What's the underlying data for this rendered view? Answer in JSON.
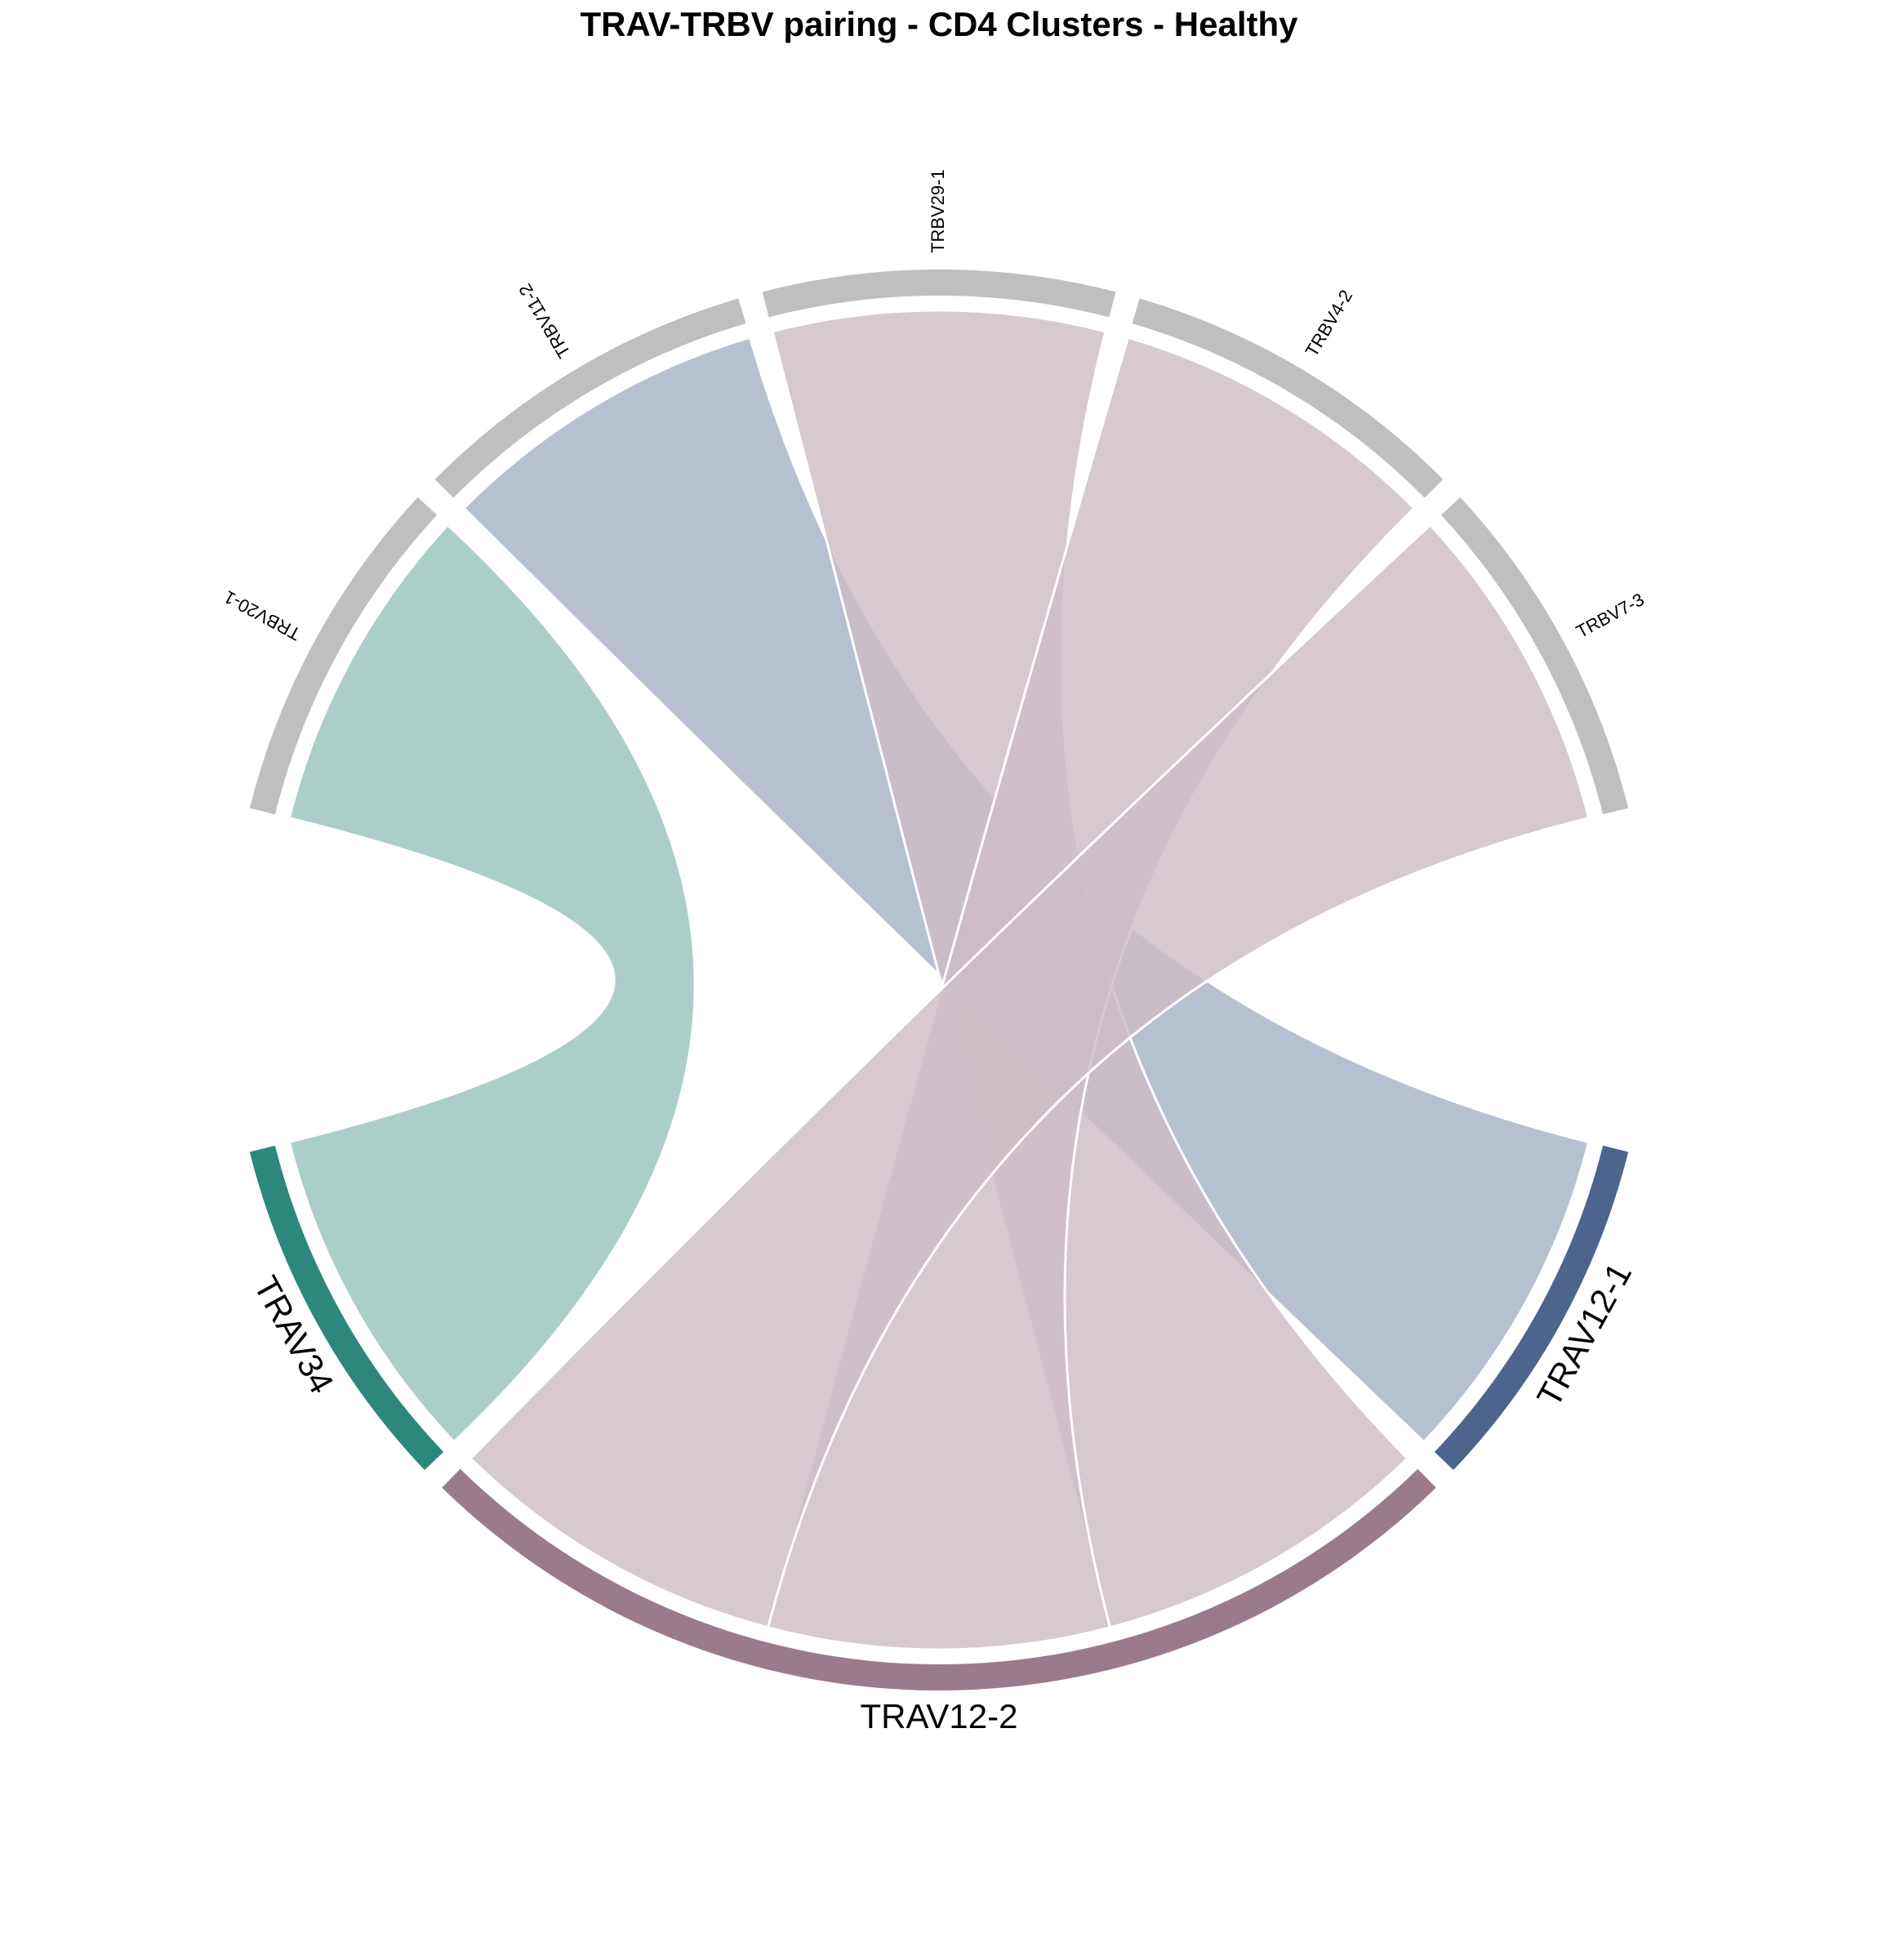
{
  "chart_data": {
    "type": "chord",
    "title": "TRAV-TRBV pairing - CD4 Clusters - Healthy",
    "sectors": {
      "trbv": [
        {
          "name": "TRBV20-1",
          "value": 1,
          "color": "#bfbfbf"
        },
        {
          "name": "TRBV11-2",
          "value": 1,
          "color": "#bfbfbf"
        },
        {
          "name": "TRBV29-1",
          "value": 1,
          "color": "#bfbfbf"
        },
        {
          "name": "TRBV4-2",
          "value": 1,
          "color": "#bfbfbf"
        },
        {
          "name": "TRBV7-3",
          "value": 1,
          "color": "#bfbfbf"
        }
      ],
      "trav": [
        {
          "name": "TRAV12-1",
          "value": 1,
          "color": "#4d648d"
        },
        {
          "name": "TRAV12-2",
          "value": 3,
          "color": "#9b7a8c"
        },
        {
          "name": "TRAV34",
          "value": 1,
          "color": "#2e877c"
        }
      ]
    },
    "links": [
      {
        "from": "TRBV20-1",
        "to": "TRAV34",
        "value": 1
      },
      {
        "from": "TRBV11-2",
        "to": "TRAV12-1",
        "value": 1
      },
      {
        "from": "TRBV29-1",
        "to": "TRAV12-2",
        "value": 1
      },
      {
        "from": "TRBV4-2",
        "to": "TRAV12-2",
        "value": 1
      },
      {
        "from": "TRBV7-3",
        "to": "TRAV12-2",
        "value": 1
      }
    ],
    "colors": {
      "trbv_track": "#bfbfbf",
      "link_TRAV12-1": "#a7b2c6",
      "link_TRAV12-2": "#cdbdc6",
      "link_TRAV34": "#99c3bd"
    }
  }
}
